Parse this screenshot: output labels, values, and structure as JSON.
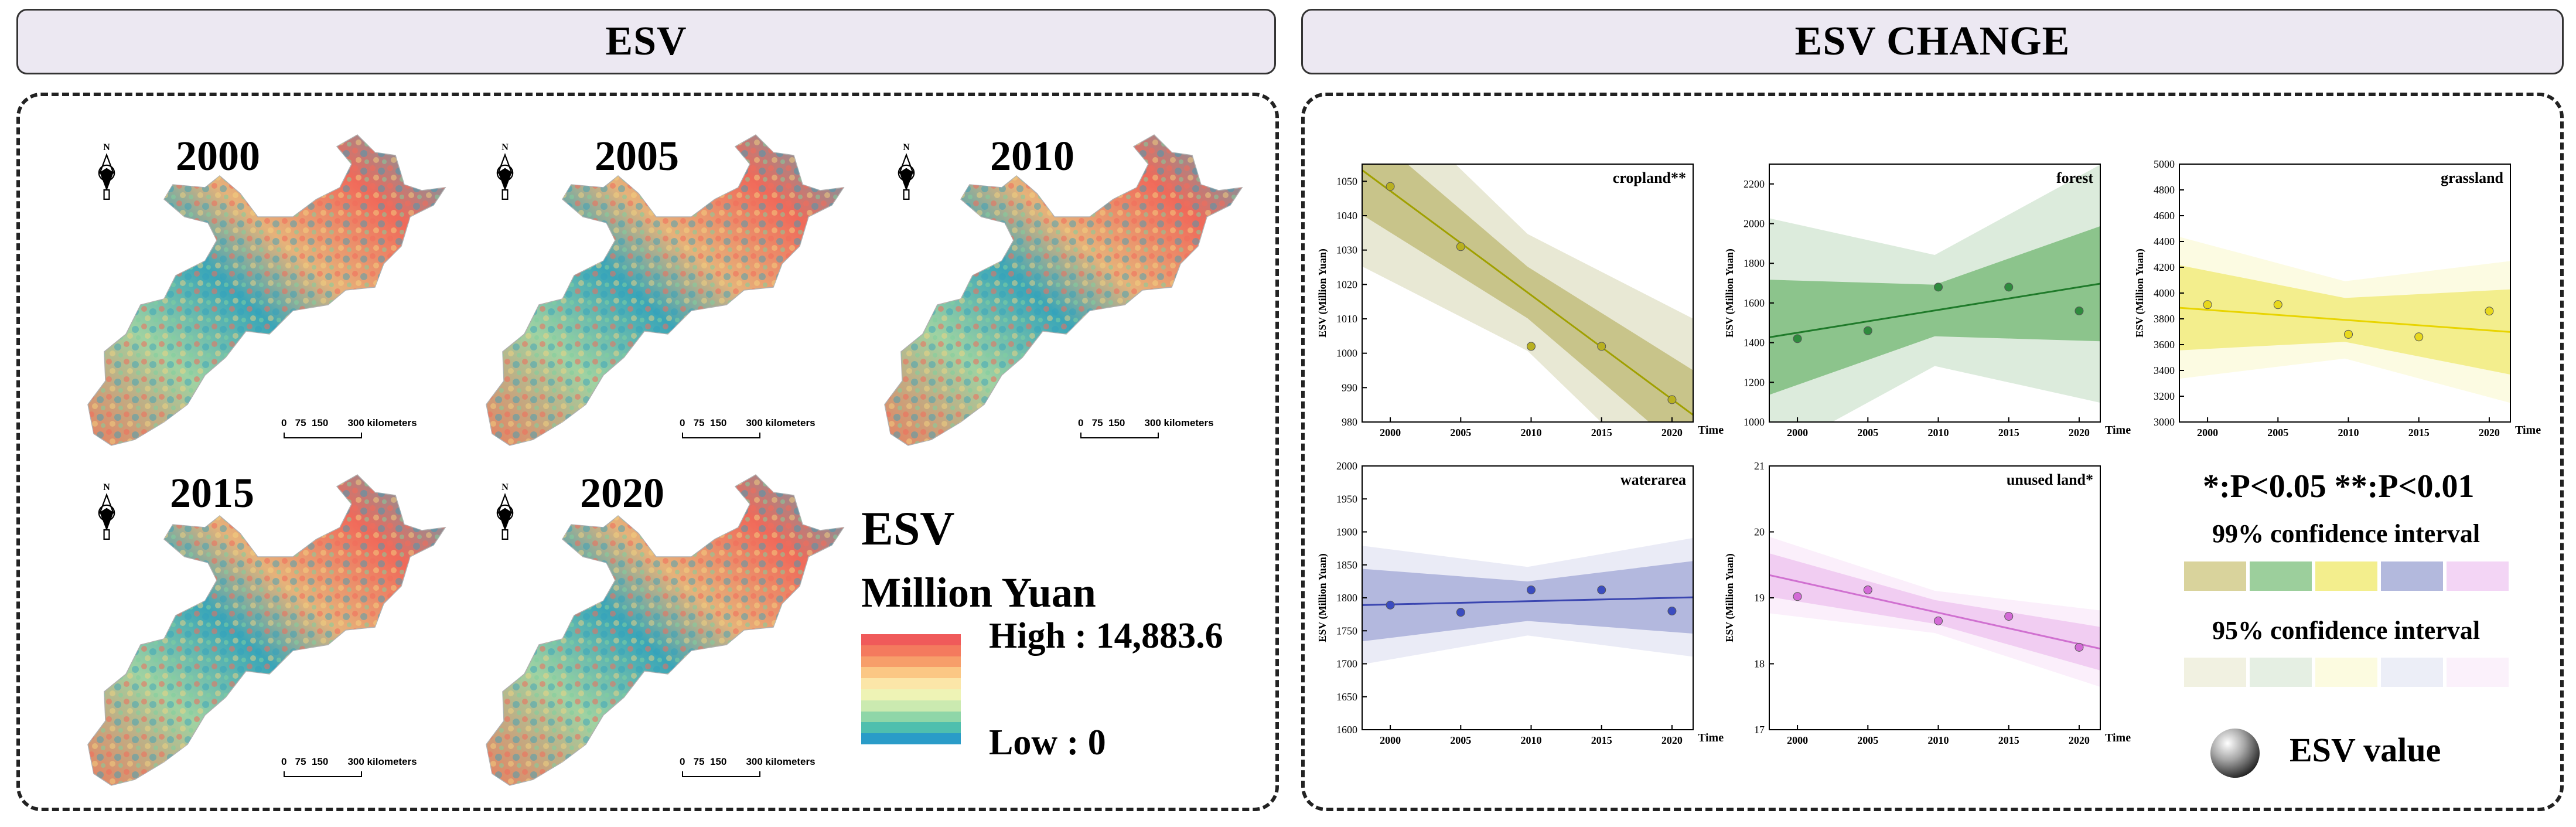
{
  "headers": {
    "left": "ESV",
    "right": "ESV CHANGE"
  },
  "maps": {
    "years": [
      "2000",
      "2005",
      "2010",
      "2015",
      "2020"
    ],
    "scale_ticks": [
      "0",
      "75",
      "150",
      "300 kilometers"
    ],
    "north_label": "N"
  },
  "map_legend": {
    "title": "ESV",
    "unit": "Million Yuan",
    "high": "High : 14,883.6",
    "low": "Low : 0",
    "ramp_colors": [
      "#f05a5a",
      "#f47a5e",
      "#f79e6a",
      "#fbc784",
      "#fbe6a8",
      "#eef3b5",
      "#cbeab0",
      "#8fd6a8",
      "#4fbfae",
      "#2a9cc8"
    ]
  },
  "chart_legend": {
    "significance": "*:P<0.05 **:P<0.01",
    "ci99_label": "99% confidence interval",
    "ci95_label": "95% confidence interval",
    "point_label": "ESV value",
    "colors99": [
      "#d9d39c",
      "#9ccf9c",
      "#f3ee8d",
      "#b3b9dd",
      "#f3d5f5"
    ],
    "colors95": [
      "#f1f1e1",
      "#e5efe3",
      "#fcfbe0",
      "#eceef7",
      "#fbf1fb"
    ]
  },
  "chart_data": [
    {
      "type": "scatter",
      "title": "cropland**",
      "xlabel": "Time",
      "ylabel": "ESV (Million Yuan)",
      "x": [
        2000,
        2005,
        2010,
        2015,
        2020
      ],
      "y": [
        1048.5,
        1031,
        1002,
        1002,
        986.5
      ],
      "fit": [
        1047.2,
        986.6
      ],
      "ci99_halfwidth": [
        13,
        7.5,
        13
      ],
      "ci95_halfwidth": [
        28,
        17,
        28
      ],
      "xlim": [
        1998,
        2021.5
      ],
      "ylim": [
        980,
        1055
      ],
      "yticks": [
        980,
        990,
        1000,
        1010,
        1020,
        1030,
        1040,
        1050
      ],
      "xticks": [
        2000,
        2005,
        2010,
        2015,
        2020
      ],
      "line_color": "#a0a000",
      "ci99_color": "#c8c48a",
      "ci95_color": "#e8e8d4",
      "point_color": "#b8b020"
    },
    {
      "type": "scatter",
      "title": "forest",
      "xlabel": "Time",
      "ylabel": "ESV (Million Yuan)",
      "x": [
        2000,
        2005,
        2010,
        2015,
        2020
      ],
      "y": [
        1420,
        1460,
        1680,
        1680,
        1560
      ],
      "fit": [
        1450,
        1680
      ],
      "ci99_halfwidth": [
        290,
        130,
        290
      ],
      "ci95_halfwidth": [
        600,
        280,
        600
      ],
      "xlim": [
        1998,
        2021.5
      ],
      "ylim": [
        1000,
        2300
      ],
      "yticks": [
        1000,
        1200,
        1400,
        1600,
        1800,
        2000,
        2200
      ],
      "xticks": [
        2000,
        2005,
        2010,
        2015,
        2020
      ],
      "line_color": "#1f7a2a",
      "ci99_color": "#8cc48c",
      "ci95_color": "#dcebdc",
      "point_color": "#2e8b3d"
    },
    {
      "type": "scatter",
      "title": "grassland",
      "xlabel": "Time",
      "ylabel": "ESV (Million Yuan)",
      "x": [
        2000,
        2005,
        2010,
        2015,
        2020
      ],
      "y": [
        3910,
        3910,
        3680,
        3660,
        3860
      ],
      "fit": [
        3870,
        3710
      ],
      "ci99_halfwidth": [
        330,
        170,
        330
      ],
      "ci95_halfwidth": [
        550,
        300,
        550
      ],
      "xlim": [
        1998,
        2021.5
      ],
      "ylim": [
        3000,
        5000
      ],
      "yticks": [
        3000,
        3200,
        3400,
        3600,
        3800,
        4000,
        4200,
        4400,
        4600,
        4800,
        5000
      ],
      "xticks": [
        2000,
        2005,
        2010,
        2015,
        2020
      ],
      "line_color": "#e8d400",
      "ci99_color": "#f3ee8d",
      "ci95_color": "#fcfbe2",
      "point_color": "#e8d81c"
    },
    {
      "type": "scatter",
      "title": "waterarea",
      "xlabel": "Time",
      "ylabel": "ESV (Million Yuan)",
      "x": [
        2000,
        2005,
        2010,
        2015,
        2020
      ],
      "y": [
        1789,
        1778,
        1812,
        1812,
        1780
      ],
      "fit": [
        1790,
        1800
      ],
      "ci99_halfwidth": [
        55,
        30,
        55
      ],
      "ci95_halfwidth": [
        90,
        52,
        90
      ],
      "xlim": [
        1998,
        2021.5
      ],
      "ylim": [
        1600,
        2000
      ],
      "yticks": [
        1600,
        1650,
        1700,
        1750,
        1800,
        1850,
        1900,
        1950,
        2000
      ],
      "xticks": [
        2000,
        2005,
        2010,
        2015,
        2020
      ],
      "line_color": "#3a45b0",
      "ci99_color": "#b3b8de",
      "ci95_color": "#eaebf6",
      "point_color": "#3b4cc0"
    },
    {
      "type": "scatter",
      "title": "unused land*",
      "xlabel": "Time",
      "ylabel": "ESV (Million Yuan)",
      "x": [
        2000,
        2005,
        2010,
        2015,
        2020
      ],
      "y": [
        19.02,
        19.12,
        18.65,
        18.72,
        18.25
      ],
      "fit": [
        19.25,
        18.3
      ],
      "ci99_halfwidth": [
        0.33,
        0.18,
        0.33
      ],
      "ci95_halfwidth": [
        0.58,
        0.32,
        0.58
      ],
      "xlim": [
        1998,
        2021.5
      ],
      "ylim": [
        17,
        21
      ],
      "yticks": [
        17,
        18,
        19,
        20,
        21
      ],
      "xticks": [
        2000,
        2005,
        2010,
        2015,
        2020
      ],
      "line_color": "#d070d0",
      "ci99_color": "#f1cdf2",
      "ci95_color": "#fbeffb",
      "point_color": "#d36ad6"
    }
  ]
}
